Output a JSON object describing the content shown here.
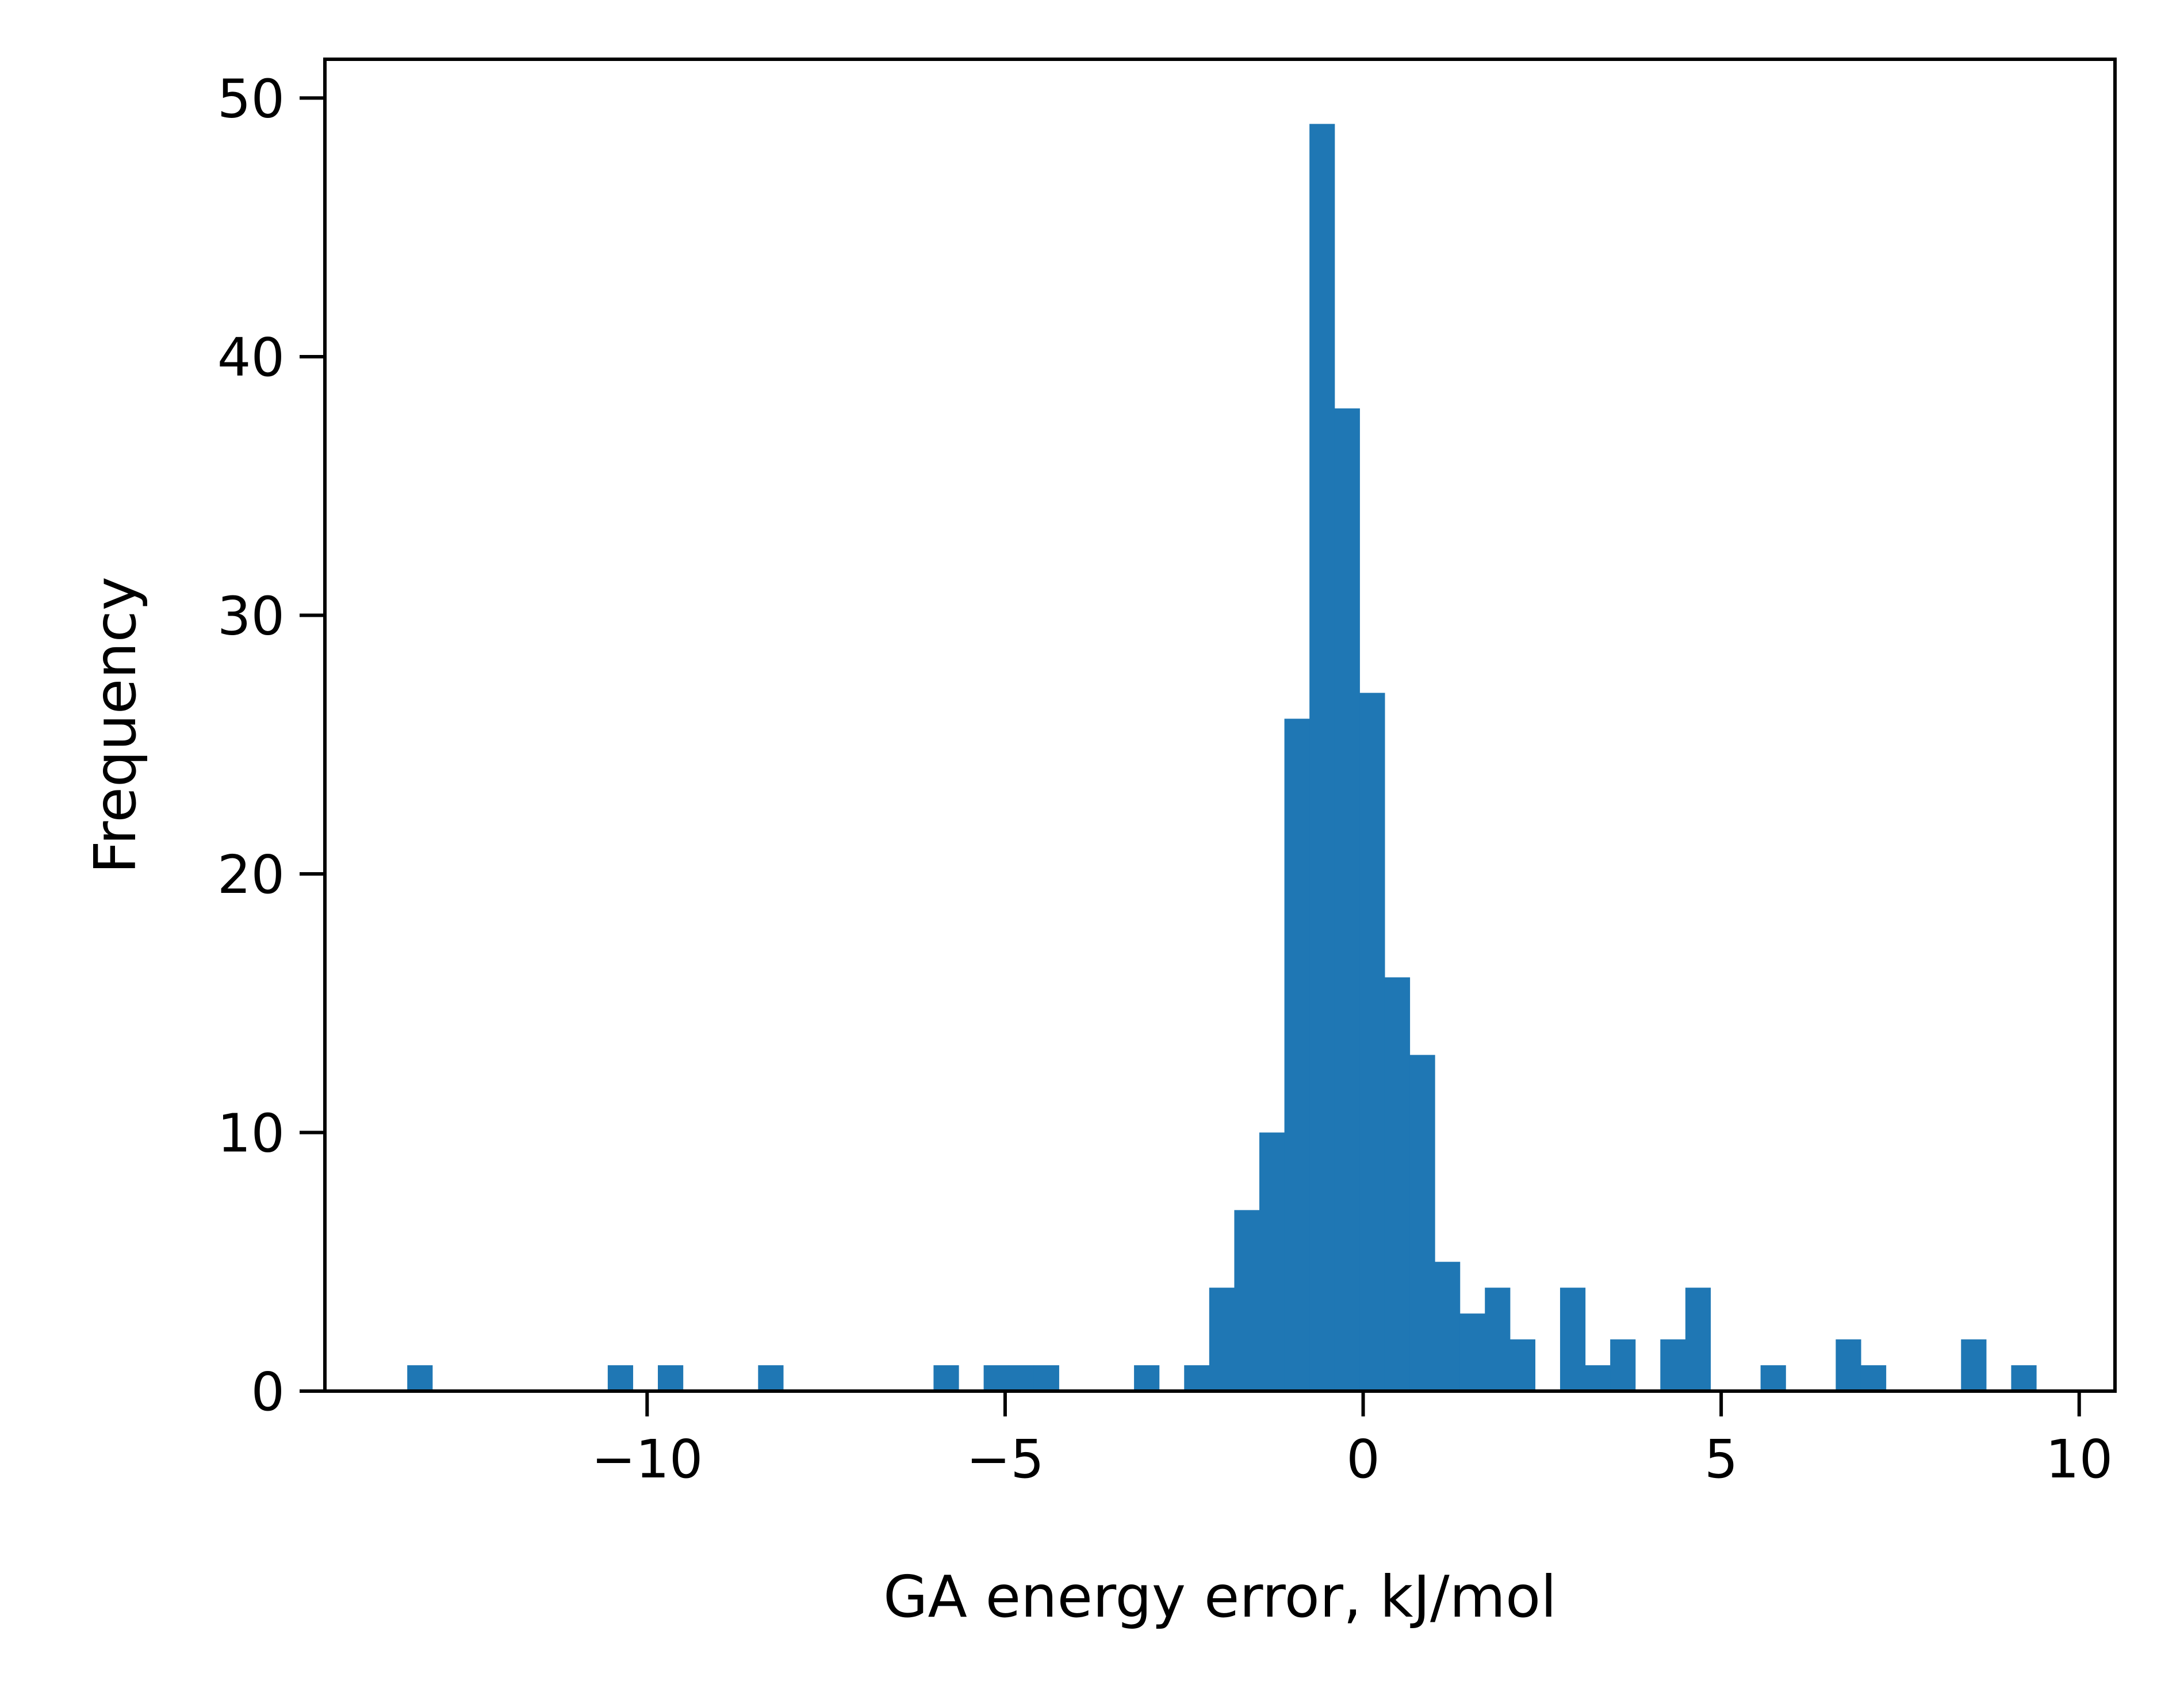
{
  "chart_data": {
    "type": "bar",
    "title": "",
    "xlabel": "GA energy error, kJ/mol",
    "ylabel": "Frequency",
    "xlim": [
      -14.5,
      10.5
    ],
    "ylim": [
      0,
      51.5
    ],
    "xticks": [
      -10,
      -5,
      0,
      5,
      10
    ],
    "xtick_labels": [
      "−10",
      "−5",
      "0",
      "5",
      "10"
    ],
    "yticks": [
      0,
      10,
      20,
      30,
      40,
      50
    ],
    "ytick_labels": [
      "0",
      "10",
      "20",
      "30",
      "40",
      "50"
    ],
    "grid": false,
    "bar_color": "#1f77b4",
    "bins": [
      {
        "x0": -13.35,
        "x1": -13.0,
        "count": 1
      },
      {
        "x0": -10.55,
        "x1": -10.2,
        "count": 1
      },
      {
        "x0": -9.85,
        "x1": -9.5,
        "count": 1
      },
      {
        "x0": -8.45,
        "x1": -8.1,
        "count": 1
      },
      {
        "x0": -6.0,
        "x1": -5.65,
        "count": 1
      },
      {
        "x0": -5.3,
        "x1": -4.95,
        "count": 1
      },
      {
        "x0": -4.95,
        "x1": -4.6,
        "count": 1
      },
      {
        "x0": -4.6,
        "x1": -4.25,
        "count": 1
      },
      {
        "x0": -3.2,
        "x1": -2.85,
        "count": 1
      },
      {
        "x0": -2.5,
        "x1": -2.15,
        "count": 1
      },
      {
        "x0": -2.15,
        "x1": -1.8,
        "count": 4
      },
      {
        "x0": -1.8,
        "x1": -1.45,
        "count": 7
      },
      {
        "x0": -1.45,
        "x1": -1.1,
        "count": 10
      },
      {
        "x0": -1.1,
        "x1": -0.75,
        "count": 26
      },
      {
        "x0": -0.75,
        "x1": -0.4,
        "count": 49
      },
      {
        "x0": -0.4,
        "x1": -0.05,
        "count": 38
      },
      {
        "x0": -0.05,
        "x1": 0.3,
        "count": 27
      },
      {
        "x0": 0.3,
        "x1": 0.65,
        "count": 16
      },
      {
        "x0": 0.65,
        "x1": 1.0,
        "count": 13
      },
      {
        "x0": 1.0,
        "x1": 1.35,
        "count": 5
      },
      {
        "x0": 1.35,
        "x1": 1.7,
        "count": 3
      },
      {
        "x0": 1.7,
        "x1": 2.05,
        "count": 4
      },
      {
        "x0": 2.05,
        "x1": 2.4,
        "count": 2
      },
      {
        "x0": 2.75,
        "x1": 3.1,
        "count": 4
      },
      {
        "x0": 3.1,
        "x1": 3.45,
        "count": 1
      },
      {
        "x0": 3.45,
        "x1": 3.8,
        "count": 2
      },
      {
        "x0": 4.15,
        "x1": 4.5,
        "count": 2
      },
      {
        "x0": 4.5,
        "x1": 4.85,
        "count": 4
      },
      {
        "x0": 5.55,
        "x1": 5.9,
        "count": 1
      },
      {
        "x0": 6.6,
        "x1": 6.95,
        "count": 2
      },
      {
        "x0": 6.95,
        "x1": 7.3,
        "count": 1
      },
      {
        "x0": 8.35,
        "x1": 8.7,
        "count": 2
      },
      {
        "x0": 9.05,
        "x1": 9.4,
        "count": 1
      }
    ]
  }
}
